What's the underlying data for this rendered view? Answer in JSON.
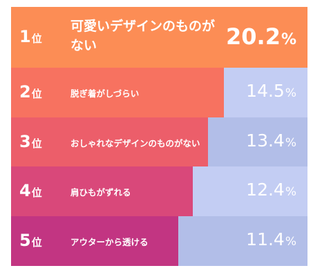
{
  "chart_data": {
    "type": "bar",
    "orientation": "horizontal",
    "categories": [
      "可愛いデザインのものがない",
      "脱ぎ着がしづらい",
      "おしゃれなデザインのものがない",
      "肩ひもがずれる",
      "アウターから透ける"
    ],
    "ranks": [
      "1",
      "2",
      "3",
      "4",
      "5"
    ],
    "rank_suffix": "位",
    "values": [
      20.2,
      14.5,
      13.4,
      12.4,
      11.4
    ],
    "value_labels": [
      "20.2",
      "14.5",
      "13.4",
      "12.4",
      "11.4"
    ],
    "unit": "%",
    "ylim": [
      0,
      20.2
    ],
    "legend": "none",
    "grid": false
  },
  "colors": {
    "bars": [
      "#fc8d55",
      "#f77260",
      "#ec5e6a",
      "#d9487a",
      "#c23582"
    ],
    "backgrounds": [
      "#fc8d55",
      "#c3cdf3",
      "#b2bee8",
      "#c3cdf3",
      "#b2bee8"
    ]
  }
}
